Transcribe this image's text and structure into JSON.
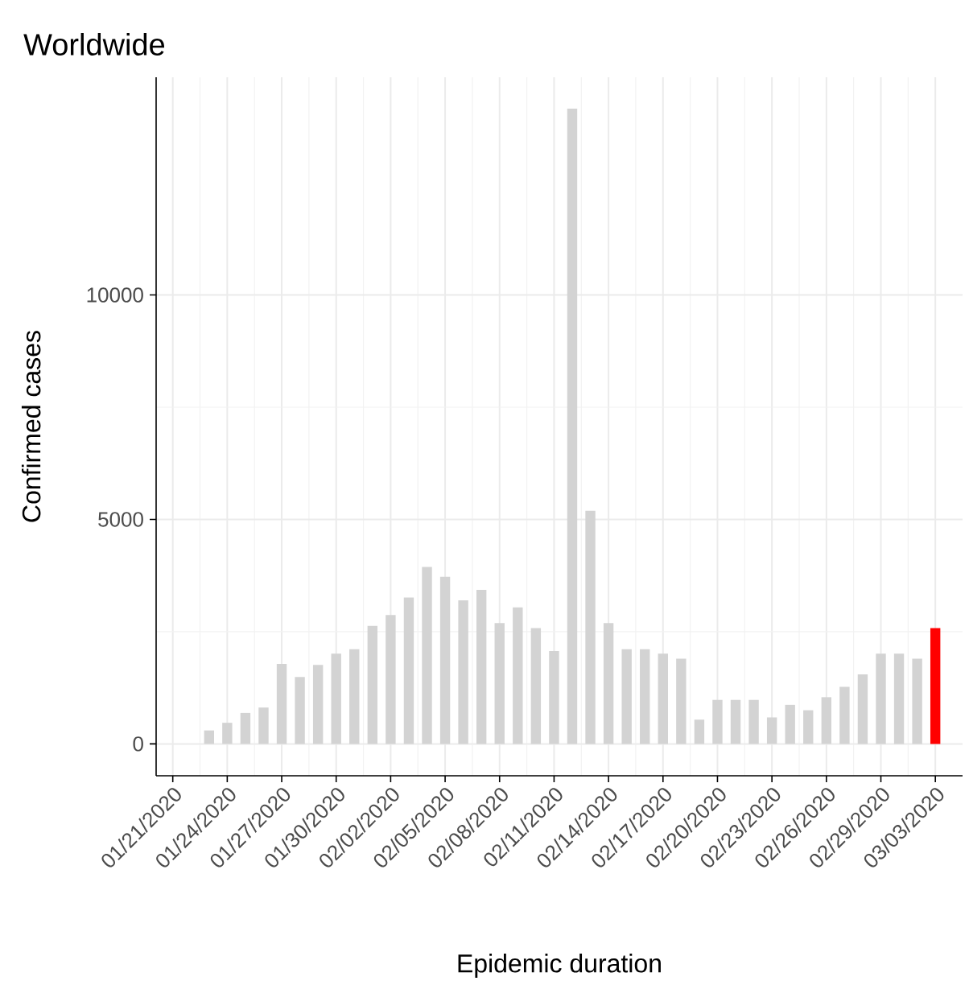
{
  "chart_data": {
    "type": "bar",
    "title": "Worldwide",
    "xlabel": "Epidemic duration",
    "ylabel": "Confirmed cases",
    "x": [
      "2020-01-23",
      "2020-01-24",
      "2020-01-25",
      "2020-01-26",
      "2020-01-27",
      "2020-01-28",
      "2020-01-29",
      "2020-01-30",
      "2020-01-31",
      "2020-02-01",
      "2020-02-02",
      "2020-02-03",
      "2020-02-04",
      "2020-02-05",
      "2020-02-06",
      "2020-02-07",
      "2020-02-08",
      "2020-02-09",
      "2020-02-10",
      "2020-02-11",
      "2020-02-12",
      "2020-02-13",
      "2020-02-14",
      "2020-02-15",
      "2020-02-16",
      "2020-02-17",
      "2020-02-18",
      "2020-02-19",
      "2020-02-20",
      "2020-02-21",
      "2020-02-22",
      "2020-02-23",
      "2020-02-24",
      "2020-02-25",
      "2020-02-26",
      "2020-02-27",
      "2020-02-28",
      "2020-02-29",
      "2020-03-01",
      "2020-03-02",
      "2020-03-03"
    ],
    "values": [
      300,
      470,
      690,
      810,
      1780,
      1490,
      1760,
      2010,
      2110,
      2630,
      2870,
      3260,
      3940,
      3720,
      3200,
      3430,
      2690,
      3040,
      2580,
      2070,
      14150,
      5190,
      2690,
      2110,
      2110,
      2010,
      1900,
      540,
      980,
      980,
      980,
      590,
      870,
      750,
      1040,
      1270,
      1550,
      2010,
      2010,
      1900,
      2580
    ],
    "colors": [
      "#d3d3d3",
      "#d3d3d3",
      "#d3d3d3",
      "#d3d3d3",
      "#d3d3d3",
      "#d3d3d3",
      "#d3d3d3",
      "#d3d3d3",
      "#d3d3d3",
      "#d3d3d3",
      "#d3d3d3",
      "#d3d3d3",
      "#d3d3d3",
      "#d3d3d3",
      "#d3d3d3",
      "#d3d3d3",
      "#d3d3d3",
      "#d3d3d3",
      "#d3d3d3",
      "#d3d3d3",
      "#d3d3d3",
      "#d3d3d3",
      "#d3d3d3",
      "#d3d3d3",
      "#d3d3d3",
      "#d3d3d3",
      "#d3d3d3",
      "#d3d3d3",
      "#d3d3d3",
      "#d3d3d3",
      "#d3d3d3",
      "#d3d3d3",
      "#d3d3d3",
      "#d3d3d3",
      "#d3d3d3",
      "#d3d3d3",
      "#d3d3d3",
      "#d3d3d3",
      "#d3d3d3",
      "#d3d3d3",
      "#ff0000"
    ],
    "xlim": [
      "2020-01-20T02:00",
      "2020-03-04T12:00"
    ],
    "xticks": [
      {
        "value": "2020-01-21",
        "label": "01/21/2020"
      },
      {
        "value": "2020-01-24",
        "label": "01/24/2020"
      },
      {
        "value": "2020-01-27",
        "label": "01/27/2020"
      },
      {
        "value": "2020-01-30",
        "label": "01/30/2020"
      },
      {
        "value": "2020-02-02",
        "label": "02/02/2020"
      },
      {
        "value": "2020-02-05",
        "label": "02/05/2020"
      },
      {
        "value": "2020-02-08",
        "label": "02/08/2020"
      },
      {
        "value": "2020-02-11",
        "label": "02/11/2020"
      },
      {
        "value": "2020-02-14",
        "label": "02/14/2020"
      },
      {
        "value": "2020-02-17",
        "label": "02/17/2020"
      },
      {
        "value": "2020-02-20",
        "label": "02/20/2020"
      },
      {
        "value": "2020-02-23",
        "label": "02/23/2020"
      },
      {
        "value": "2020-02-26",
        "label": "02/26/2020"
      },
      {
        "value": "2020-02-29",
        "label": "02/29/2020"
      },
      {
        "value": "2020-03-03",
        "label": "03/03/2020"
      }
    ],
    "ylim": [
      -710,
      14850
    ],
    "yticks": [
      0,
      5000,
      10000
    ],
    "grid": true
  }
}
